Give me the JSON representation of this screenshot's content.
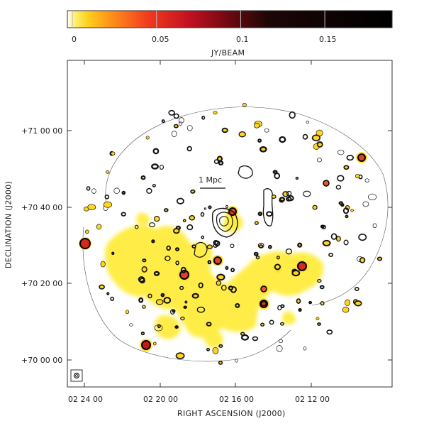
{
  "colorbar": {
    "ticks": [
      "0",
      "0.05",
      "0.1",
      "0.15"
    ],
    "tick_values": [
      0,
      0.05,
      0.1,
      0.15
    ],
    "range": [
      -0.003,
      0.19
    ],
    "label": "JY/BEAM",
    "colors": [
      "#ffffff",
      "#fff27a",
      "#ffd21e",
      "#ff9c1a",
      "#f23a1e",
      "#c01020",
      "#6a0a10",
      "#1c0606",
      "#000000"
    ]
  },
  "scale_bar": {
    "label": "1 Mpc"
  },
  "axes": {
    "xlabel": "RIGHT ASCENSION (J2000)",
    "ylabel": "DECLINATION (J2000)",
    "x_ticks": [
      "02 24 00",
      "02 20 00",
      "02 16 00",
      "02 12 00"
    ],
    "y_ticks": [
      "+71 00 00",
      "+70 40 00",
      "+70 20 00",
      "+70 00 00"
    ]
  },
  "colors": {
    "diffuse": "#ffeb3b",
    "contour": "#111111",
    "frame": "#333333"
  },
  "beam_icon": "beam-ellipse-icon"
}
